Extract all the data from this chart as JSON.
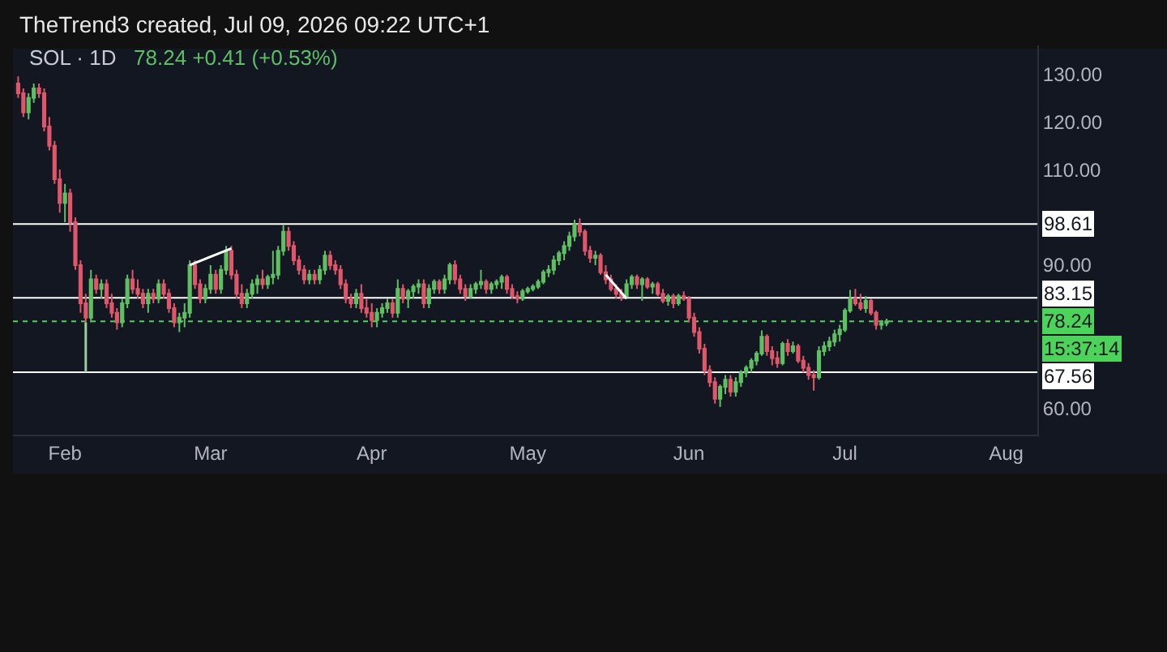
{
  "chart_data": {
    "type": "candlestick",
    "title": "SOL · 1D",
    "subtitle": "78.24 +0.41 (+0.53%)",
    "annotations": [
      "TheTrend3 created, Jul 09, 2026 09:22 UTC+1",
      "15:37:14"
    ],
    "x": [
      "2026-01-23",
      "2026-01-24",
      "2026-01-25",
      "2026-01-26",
      "2026-01-27",
      "2026-01-28",
      "2026-01-29",
      "2026-01-30",
      "2026-01-31",
      "2026-02-01",
      "2026-02-02",
      "2026-02-03",
      "2026-02-04",
      "2026-02-05",
      "2026-02-06",
      "2026-02-07",
      "2026-02-08",
      "2026-02-09",
      "2026-02-10",
      "2026-02-11",
      "2026-02-12",
      "2026-02-13",
      "2026-02-14",
      "2026-02-15",
      "2026-02-16",
      "2026-02-17",
      "2026-02-18",
      "2026-02-19",
      "2026-02-20",
      "2026-02-21",
      "2026-02-22",
      "2026-02-23",
      "2026-02-24",
      "2026-02-25",
      "2026-02-26",
      "2026-02-27",
      "2026-02-28",
      "2026-03-01",
      "2026-03-02",
      "2026-03-03",
      "2026-03-04",
      "2026-03-05",
      "2026-03-06",
      "2026-03-07",
      "2026-03-08",
      "2026-03-09",
      "2026-03-10",
      "2026-03-11",
      "2026-03-12",
      "2026-03-13",
      "2026-03-14",
      "2026-03-15",
      "2026-03-16",
      "2026-03-17",
      "2026-03-18",
      "2026-03-19",
      "2026-03-20",
      "2026-03-21",
      "2026-03-22",
      "2026-03-23",
      "2026-03-24",
      "2026-03-25",
      "2026-03-26",
      "2026-03-27",
      "2026-03-28",
      "2026-03-29",
      "2026-03-30",
      "2026-03-31",
      "2026-04-01",
      "2026-04-02",
      "2026-04-03",
      "2026-04-04",
      "2026-04-05",
      "2026-04-06",
      "2026-04-07",
      "2026-04-08",
      "2026-04-09",
      "2026-04-10",
      "2026-04-11",
      "2026-04-12",
      "2026-04-13",
      "2026-04-14",
      "2026-04-15",
      "2026-04-16",
      "2026-04-17",
      "2026-04-18",
      "2026-04-19",
      "2026-04-20",
      "2026-04-21",
      "2026-04-22",
      "2026-04-23",
      "2026-04-24",
      "2026-04-25",
      "2026-04-26",
      "2026-04-27",
      "2026-04-28",
      "2026-04-29",
      "2026-04-30",
      "2026-05-01",
      "2026-05-02",
      "2026-05-03",
      "2026-05-04",
      "2026-05-05",
      "2026-05-06",
      "2026-05-07",
      "2026-05-08",
      "2026-05-09",
      "2026-05-10",
      "2026-05-11",
      "2026-05-12",
      "2026-05-13",
      "2026-05-14",
      "2026-05-15",
      "2026-05-16",
      "2026-05-17",
      "2026-05-18",
      "2026-05-19",
      "2026-05-20",
      "2026-05-21",
      "2026-05-22",
      "2026-05-23",
      "2026-05-24",
      "2026-05-25",
      "2026-05-26",
      "2026-05-27",
      "2026-05-28",
      "2026-05-29",
      "2026-05-30",
      "2026-05-31",
      "2026-06-01",
      "2026-06-02",
      "2026-06-03",
      "2026-06-04",
      "2026-06-05",
      "2026-06-06",
      "2026-06-07",
      "2026-06-08",
      "2026-06-09",
      "2026-06-10",
      "2026-06-11",
      "2026-06-12",
      "2026-06-13",
      "2026-06-14",
      "2026-06-15",
      "2026-06-16",
      "2026-06-17",
      "2026-06-18",
      "2026-06-19",
      "2026-06-20",
      "2026-06-21",
      "2026-06-22",
      "2026-06-23",
      "2026-06-24",
      "2026-06-25",
      "2026-06-26",
      "2026-06-27",
      "2026-06-28",
      "2026-06-29",
      "2026-06-30",
      "2026-07-01",
      "2026-07-02",
      "2026-07-03",
      "2026-07-04",
      "2026-07-05",
      "2026-07-06",
      "2026-07-07",
      "2026-07-08",
      "2026-07-09"
    ],
    "ohlc": [
      [
        128,
        129.5,
        125,
        126
      ],
      [
        126,
        127,
        121,
        122
      ],
      [
        122,
        126,
        120.5,
        125
      ],
      [
        125,
        128,
        124,
        127
      ],
      [
        127,
        128,
        125,
        126
      ],
      [
        126,
        127,
        118,
        119
      ],
      [
        119,
        121,
        114,
        115
      ],
      [
        115,
        116,
        107,
        108
      ],
      [
        108,
        110,
        101,
        103
      ],
      [
        103,
        107,
        99,
        105
      ],
      [
        105,
        106,
        97,
        99
      ],
      [
        99,
        100,
        89,
        90
      ],
      [
        90,
        91,
        80,
        82
      ],
      [
        82,
        84,
        77,
        79
      ],
      [
        79,
        89,
        78,
        87
      ],
      [
        87,
        88,
        84,
        85
      ],
      [
        85,
        87,
        83,
        86
      ],
      [
        86,
        87,
        81,
        82
      ],
      [
        82,
        84,
        79,
        80
      ],
      [
        80,
        81,
        76.5,
        78
      ],
      [
        78,
        83,
        77,
        82
      ],
      [
        82,
        88,
        81,
        87
      ],
      [
        87,
        89,
        84,
        85
      ],
      [
        85,
        87,
        83,
        84
      ],
      [
        84,
        85,
        81,
        82
      ],
      [
        82,
        85,
        80,
        84
      ],
      [
        84,
        85,
        82,
        83
      ],
      [
        83,
        87,
        82,
        86
      ],
      [
        86,
        87,
        83,
        84
      ],
      [
        84,
        85,
        80,
        81
      ],
      [
        81,
        82,
        77,
        78
      ],
      [
        78,
        80,
        76,
        79
      ],
      [
        79,
        82,
        77,
        80
      ],
      [
        80,
        91,
        79,
        90
      ],
      [
        90,
        91,
        85,
        86
      ],
      [
        86,
        87,
        82,
        83
      ],
      [
        83,
        86,
        82,
        85
      ],
      [
        85,
        90,
        84,
        88
      ],
      [
        88,
        89,
        84,
        85
      ],
      [
        85,
        90,
        84,
        89
      ],
      [
        89,
        94,
        88,
        93
      ],
      [
        93,
        94,
        87,
        88
      ],
      [
        88,
        89,
        83,
        84
      ],
      [
        84,
        86,
        81,
        82
      ],
      [
        82,
        85,
        81,
        84
      ],
      [
        84,
        87,
        83,
        86
      ],
      [
        86,
        88,
        84,
        87
      ],
      [
        87,
        89,
        85,
        86
      ],
      [
        86,
        88,
        85,
        87.5
      ],
      [
        87.5,
        93,
        86,
        88
      ],
      [
        88,
        94,
        87,
        93
      ],
      [
        93,
        98.4,
        92,
        97
      ],
      [
        97,
        98,
        93,
        94
      ],
      [
        94,
        95,
        90,
        91
      ],
      [
        91,
        92,
        88,
        89
      ],
      [
        89,
        90,
        86,
        87
      ],
      [
        87,
        89,
        86,
        88
      ],
      [
        88,
        89,
        86,
        87
      ],
      [
        87,
        90,
        86,
        89
      ],
      [
        89,
        93,
        88,
        92
      ],
      [
        92,
        93,
        89,
        90
      ],
      [
        90,
        91,
        88,
        89
      ],
      [
        89,
        90,
        85,
        86
      ],
      [
        86,
        87,
        82,
        83
      ],
      [
        83,
        84,
        81,
        82
      ],
      [
        82,
        85,
        81,
        84
      ],
      [
        84,
        86,
        80,
        81
      ],
      [
        81,
        83,
        79,
        80
      ],
      [
        80,
        82,
        77,
        78.5
      ],
      [
        78.5,
        81,
        77,
        80
      ],
      [
        80,
        82,
        79,
        81
      ],
      [
        81,
        83,
        80,
        82
      ],
      [
        82,
        83,
        79,
        80
      ],
      [
        80,
        87,
        79,
        85
      ],
      [
        85,
        86,
        82,
        83
      ],
      [
        83,
        85,
        81,
        84.5
      ],
      [
        84.5,
        86,
        83,
        85.5
      ],
      [
        85.5,
        87,
        84,
        86
      ],
      [
        86,
        87,
        81,
        82
      ],
      [
        82,
        86,
        81,
        85
      ],
      [
        85,
        87,
        84,
        86.5
      ],
      [
        86.5,
        87,
        84,
        85
      ],
      [
        85,
        88,
        84,
        87
      ],
      [
        87,
        90.5,
        86,
        90
      ],
      [
        90,
        91,
        86,
        87
      ],
      [
        87,
        88,
        84,
        85
      ],
      [
        85,
        86,
        82.5,
        83.5
      ],
      [
        83.5,
        86,
        83,
        85
      ],
      [
        85,
        86.5,
        84,
        86
      ],
      [
        86,
        89,
        85,
        86.5
      ],
      [
        86.5,
        87,
        84,
        85
      ],
      [
        85,
        86.5,
        84,
        86
      ],
      [
        86,
        87,
        85,
        86.5
      ],
      [
        86.5,
        88,
        85,
        87.5
      ],
      [
        87.5,
        88,
        84,
        85
      ],
      [
        85,
        86,
        83,
        83.5
      ],
      [
        83.5,
        84.5,
        82,
        83
      ],
      [
        83,
        85,
        82.5,
        84.5
      ],
      [
        84.5,
        85.5,
        84,
        85
      ],
      [
        85,
        86,
        84.5,
        85.5
      ],
      [
        85.5,
        87,
        85,
        86.5
      ],
      [
        86.5,
        89,
        86,
        88.5
      ],
      [
        88.5,
        90,
        87.5,
        89
      ],
      [
        89,
        92,
        88,
        91
      ],
      [
        91,
        93,
        90,
        92.5
      ],
      [
        92.5,
        95,
        91,
        94
      ],
      [
        94,
        97,
        93,
        96
      ],
      [
        96,
        99.5,
        95,
        98.5
      ],
      [
        98.5,
        99.8,
        96,
        97
      ],
      [
        97,
        97.5,
        92,
        93
      ],
      [
        93,
        94,
        90.5,
        91.5
      ],
      [
        91.5,
        93,
        90,
        92
      ],
      [
        92,
        92.5,
        88,
        88.5
      ],
      [
        88.5,
        90,
        86,
        87
      ],
      [
        87,
        88,
        84.5,
        85
      ],
      [
        85,
        86,
        83,
        84
      ],
      [
        84,
        85,
        82.5,
        83.5
      ],
      [
        83.5,
        87,
        83,
        86
      ],
      [
        86,
        88,
        85,
        87.5
      ],
      [
        87.5,
        88,
        85,
        86
      ],
      [
        86,
        87.5,
        82.5,
        87
      ],
      [
        87,
        87.5,
        85,
        85.5
      ],
      [
        85.5,
        86.5,
        84,
        86
      ],
      [
        86,
        86.5,
        83.5,
        84
      ],
      [
        84,
        85,
        82,
        82.5
      ],
      [
        82.5,
        84,
        81.5,
        83.5
      ],
      [
        83.5,
        84,
        81,
        82
      ],
      [
        82,
        84,
        81.5,
        83.5
      ],
      [
        83.5,
        84.5,
        82.5,
        83
      ],
      [
        83,
        83.5,
        78,
        79
      ],
      [
        79,
        80,
        75,
        76
      ],
      [
        76,
        77,
        71.5,
        72.5
      ],
      [
        72.5,
        73.5,
        67,
        68
      ],
      [
        68,
        69,
        64.5,
        65.5
      ],
      [
        65.5,
        66.5,
        61,
        62
      ],
      [
        62,
        65,
        60.3,
        64.5
      ],
      [
        64.5,
        67,
        63,
        66
      ],
      [
        66,
        67,
        62.5,
        63.5
      ],
      [
        63.5,
        66.5,
        62.5,
        65.5
      ],
      [
        65.5,
        68,
        64.5,
        67.5
      ],
      [
        67.5,
        69,
        66.5,
        68.5
      ],
      [
        68.5,
        70.5,
        67.5,
        70
      ],
      [
        70,
        72,
        69,
        71.5
      ],
      [
        71.5,
        76.3,
        71,
        75
      ],
      [
        75,
        75.5,
        71,
        72
      ],
      [
        72,
        73,
        69,
        70.5
      ],
      [
        70.5,
        72,
        68.5,
        69.5
      ],
      [
        69.5,
        74,
        69,
        73.5
      ],
      [
        73.5,
        74.5,
        71,
        72
      ],
      [
        72,
        74,
        71.5,
        73
      ],
      [
        73,
        73.5,
        69.5,
        70
      ],
      [
        70,
        71,
        67.5,
        68.5
      ],
      [
        68.5,
        69.5,
        66,
        67
      ],
      [
        67,
        68,
        63.7,
        66.5
      ],
      [
        66.5,
        73,
        66,
        72
      ],
      [
        72,
        74,
        71,
        73
      ],
      [
        73,
        75,
        72,
        74
      ],
      [
        74,
        76.5,
        73,
        75.5
      ],
      [
        75.5,
        77.5,
        74,
        76.5
      ],
      [
        76.5,
        81,
        76,
        80.5
      ],
      [
        80.5,
        84.8,
        80,
        83
      ],
      [
        83,
        85,
        81.5,
        82
      ],
      [
        82,
        84,
        80.5,
        81
      ],
      [
        81,
        83.5,
        80,
        82.5
      ],
      [
        82.5,
        83,
        79.5,
        80
      ],
      [
        80,
        80.5,
        76.5,
        77.5
      ],
      [
        77.5,
        78.5,
        76.5,
        77.83
      ],
      [
        77.83,
        78.8,
        77.2,
        78.24
      ]
    ],
    "colors": [
      "#e0566b",
      "#e0566b",
      "#5fbf63",
      "#5fbf63",
      "#e0566b",
      "#e0566b",
      "#e0566b",
      "#e0566b",
      "#e0566b",
      "#5fbf63",
      "#e0566b",
      "#e0566b",
      "#e0566b",
      "#e0566b",
      "#5fbf63",
      "#e0566b",
      "#5fbf63",
      "#e0566b",
      "#e0566b",
      "#e0566b",
      "#5fbf63",
      "#5fbf63",
      "#e0566b",
      "#e0566b",
      "#e0566b",
      "#5fbf63",
      "#e0566b",
      "#5fbf63",
      "#e0566b",
      "#e0566b",
      "#e0566b",
      "#5fbf63",
      "#5fbf63",
      "#5fbf63",
      "#e0566b",
      "#e0566b",
      "#5fbf63",
      "#5fbf63",
      "#e0566b",
      "#5fbf63",
      "#5fbf63",
      "#e0566b",
      "#e0566b",
      "#e0566b",
      "#5fbf63",
      "#5fbf63",
      "#5fbf63",
      "#e0566b",
      "#5fbf63",
      "#5fbf63",
      "#5fbf63",
      "#5fbf63",
      "#e0566b",
      "#e0566b",
      "#e0566b",
      "#e0566b",
      "#5fbf63",
      "#e0566b",
      "#5fbf63",
      "#5fbf63",
      "#e0566b",
      "#e0566b",
      "#e0566b",
      "#e0566b",
      "#e0566b",
      "#5fbf63",
      "#e0566b",
      "#e0566b",
      "#e0566b",
      "#5fbf63",
      "#5fbf63",
      "#5fbf63",
      "#e0566b",
      "#5fbf63",
      "#e0566b",
      "#5fbf63",
      "#5fbf63",
      "#5fbf63",
      "#e0566b",
      "#5fbf63",
      "#5fbf63",
      "#e0566b",
      "#5fbf63",
      "#5fbf63",
      "#e0566b",
      "#e0566b",
      "#e0566b",
      "#5fbf63",
      "#5fbf63",
      "#5fbf63",
      "#e0566b",
      "#5fbf63",
      "#5fbf63",
      "#5fbf63",
      "#e0566b",
      "#e0566b",
      "#e0566b",
      "#5fbf63",
      "#5fbf63",
      "#5fbf63",
      "#5fbf63",
      "#5fbf63",
      "#5fbf63",
      "#5fbf63",
      "#5fbf63",
      "#5fbf63",
      "#5fbf63",
      "#5fbf63",
      "#e0566b",
      "#e0566b",
      "#e0566b",
      "#5fbf63",
      "#e0566b",
      "#e0566b",
      "#e0566b",
      "#e0566b",
      "#e0566b",
      "#5fbf63",
      "#5fbf63",
      "#e0566b",
      "#5fbf63",
      "#e0566b",
      "#5fbf63",
      "#e0566b",
      "#e0566b",
      "#5fbf63",
      "#e0566b",
      "#5fbf63",
      "#e0566b",
      "#e0566b",
      "#e0566b",
      "#e0566b",
      "#e0566b",
      "#e0566b",
      "#e0566b",
      "#5fbf63",
      "#5fbf63",
      "#e0566b",
      "#5fbf63",
      "#5fbf63",
      "#5fbf63",
      "#5fbf63",
      "#5fbf63",
      "#5fbf63",
      "#e0566b",
      "#e0566b",
      "#e0566b",
      "#5fbf63",
      "#e0566b",
      "#5fbf63",
      "#e0566b",
      "#e0566b",
      "#e0566b",
      "#e0566b",
      "#5fbf63",
      "#5fbf63",
      "#5fbf63",
      "#5fbf63",
      "#5fbf63",
      "#5fbf63",
      "#5fbf63",
      "#e0566b",
      "#e0566b",
      "#5fbf63",
      "#e0566b",
      "#e0566b",
      "#5fbf63",
      "#5fbf63"
    ],
    "series": [
      {
        "type": "line",
        "x": [
          "2026-02-25",
          "2026-03-05"
        ],
        "values": [
          90,
          93.5
        ],
        "color": "#ffffff"
      },
      {
        "type": "line",
        "x": [
          "2026-05-16",
          "2026-05-20"
        ],
        "values": [
          88,
          83
        ],
        "color": "#ffffff"
      },
      {
        "type": "line",
        "x": [
          "2026-02-05",
          "2026-02-05"
        ],
        "values": [
          78,
          67.6
        ],
        "color": "#9ccc9c"
      }
    ],
    "xlim": [
      "2026-01-22",
      "2026-08-07"
    ],
    "xticks": [
      {
        "value": "2026-02-01",
        "label": "Feb"
      },
      {
        "value": "2026-03-01",
        "label": "Mar"
      },
      {
        "value": "2026-04-01",
        "label": "Apr"
      },
      {
        "value": "2026-05-01",
        "label": "May"
      },
      {
        "value": "2026-06-01",
        "label": "Jun"
      },
      {
        "value": "2026-07-01",
        "label": "Jul"
      },
      {
        "value": "2026-08-01",
        "label": "Aug"
      }
    ],
    "ylim": [
      54.5,
      136
    ],
    "yticks": [
      {
        "value": 60,
        "label": "60.00"
      },
      {
        "value": 90,
        "label": "90.00"
      },
      {
        "value": 110,
        "label": "110.00"
      },
      {
        "value": 120,
        "label": "120.00"
      },
      {
        "value": 130,
        "label": "130.00"
      }
    ],
    "ref_lines": [
      {
        "axis": "y",
        "value": 98.61,
        "label": "98.61",
        "color": "#ffffff"
      },
      {
        "axis": "y",
        "value": 83.15,
        "label": "83.15",
        "color": "#ffffff"
      },
      {
        "axis": "y",
        "value": 78.24,
        "label": "78.24",
        "color": "#4cd45a",
        "line_style": "dotted"
      },
      {
        "axis": "y",
        "value": 67.56,
        "label": "67.56",
        "color": "#ffffff"
      }
    ]
  }
}
